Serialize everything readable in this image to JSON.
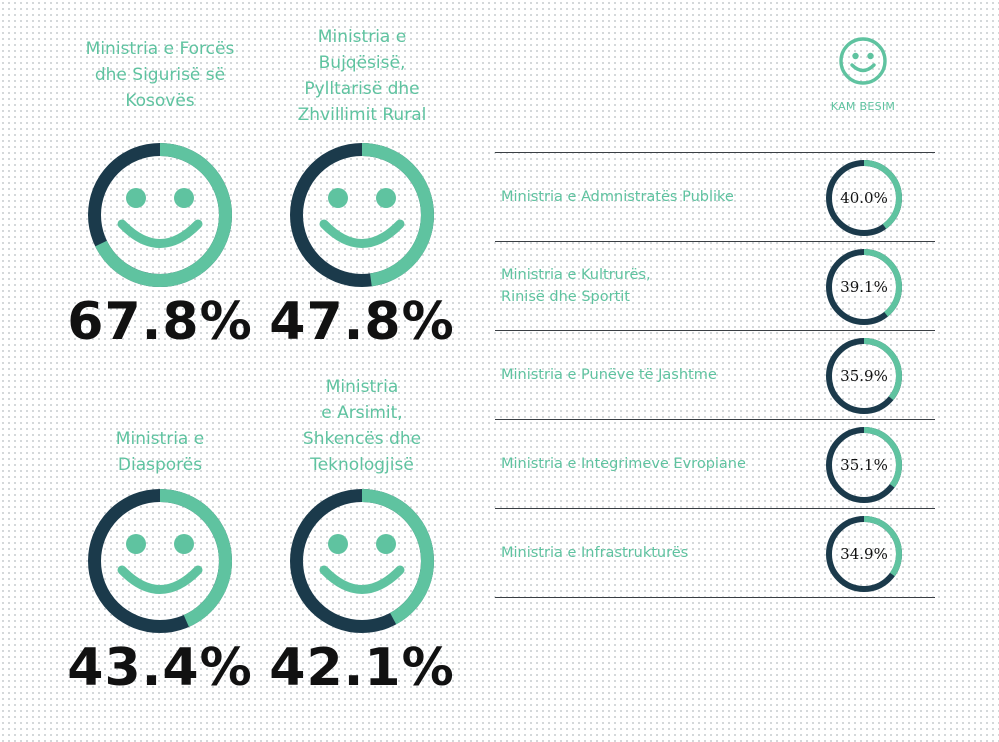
{
  "chart_data": {
    "type": "pie",
    "colors": {
      "filled": "#5fc3a0",
      "remainder": "#1b3a4b",
      "text": "#111111"
    },
    "featured": [
      {
        "name": "Ministria e Forcës\ndhe Sigurisë së\nKosovës",
        "value": 67.8,
        "label": "67.8%"
      },
      {
        "name": "Ministria e\nBujqësisë,\nPylltarisë dhe\nZhvillimit Rural",
        "value": 47.8,
        "label": "47.8%"
      },
      {
        "name": "Ministria e\nDiasporës",
        "value": 43.4,
        "label": "43.4%"
      },
      {
        "name": "Ministria\ne Arsimit,\nShkencës dhe\nTeknologjisë",
        "value": 42.1,
        "label": "42.1%"
      }
    ],
    "legend": {
      "label": "KAM BESIM",
      "icon": "smiley-icon"
    },
    "list": [
      {
        "name": "Ministria e Admnistratës Publike",
        "value": 40.0,
        "label": "40.0%"
      },
      {
        "name": "Ministria e Kultrurës,\nRinisë dhe Sportit",
        "value": 39.1,
        "label": "39.1%"
      },
      {
        "name": "Ministria e Punëve të Jashtme",
        "value": 35.9,
        "label": "35.9%"
      },
      {
        "name": "Ministria e Integrimeve Evropiane",
        "value": 35.1,
        "label": "35.1%"
      },
      {
        "name": "Ministria e Infrastrukturës",
        "value": 34.9,
        "label": "34.9%"
      }
    ]
  }
}
